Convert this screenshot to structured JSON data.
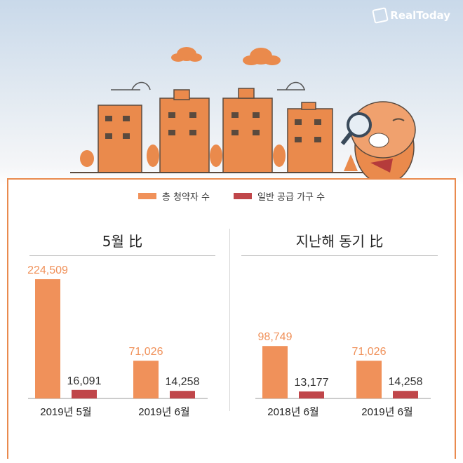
{
  "brand": {
    "name": "RealToday"
  },
  "legend": [
    {
      "label": "총 청약자 수",
      "color": "#f0915a"
    },
    {
      "label": "일반 공급 가구 수",
      "color": "#c0464a"
    }
  ],
  "value_label_colors": {
    "total": "#f0915a",
    "supply": "#333333"
  },
  "chart_data": [
    {
      "type": "bar",
      "title": "5월 比",
      "categories": [
        "2019년 5월",
        "2019년 6월"
      ],
      "series": [
        {
          "name": "총 청약자 수",
          "values": [
            224509,
            71026
          ],
          "labels": [
            "224,509",
            "71,026"
          ]
        },
        {
          "name": "일반 공급 가구 수",
          "values": [
            16091,
            14258
          ],
          "labels": [
            "16,091",
            "14,258"
          ]
        }
      ]
    },
    {
      "type": "bar",
      "title": "지난해 동기 比",
      "categories": [
        "2018년 6월",
        "2019년 6월"
      ],
      "series": [
        {
          "name": "총 청약자 수",
          "values": [
            98749,
            71026
          ],
          "labels": [
            "98,749",
            "71,026"
          ]
        },
        {
          "name": "일반 공급 가구 수",
          "values": [
            13177,
            14258
          ],
          "labels": [
            "13,177",
            "14,258"
          ]
        }
      ]
    }
  ]
}
